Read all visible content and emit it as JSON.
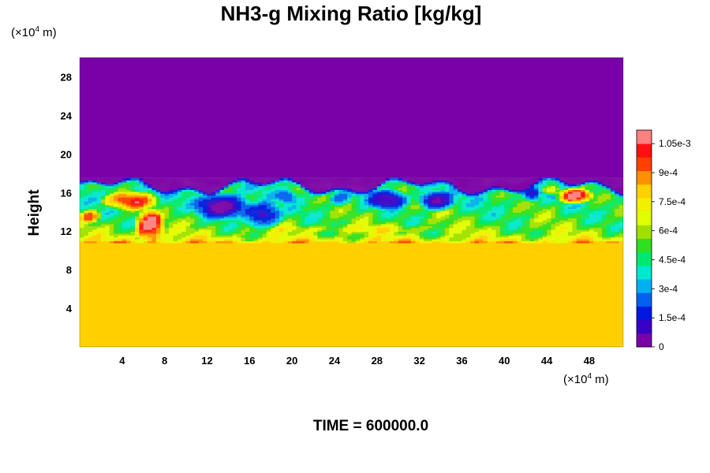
{
  "chart_data": {
    "type": "heatmap",
    "title": "NH3-g Mixing Ratio [kg/kg]",
    "ylabel": "Height",
    "xlabel": "",
    "x_unit": {
      "prefix": "(×10",
      "exp": "4",
      "suffix": " m)"
    },
    "y_unit": {
      "prefix": "(×10",
      "exp": "4",
      "suffix": " m)"
    },
    "xlim": [
      0,
      51.2
    ],
    "ylim": [
      0,
      30
    ],
    "x_ticks": [
      4,
      8,
      12,
      16,
      20,
      24,
      28,
      32,
      36,
      40,
      44,
      48
    ],
    "y_ticks": [
      4,
      8,
      12,
      16,
      20,
      24,
      28
    ],
    "colorbar": {
      "min": 0,
      "max": 0.00112,
      "tick_values": [
        0,
        0.00015,
        0.0003,
        0.00045,
        0.0006,
        0.00075,
        0.0009,
        0.00105
      ],
      "tick_labels": [
        "0",
        "1.5e-4",
        "3e-4",
        "4.5e-4",
        "6e-4",
        "7.5e-4",
        "9e-4",
        "1.05e-3"
      ],
      "colors": [
        "#7a00a8",
        "#3a00c8",
        "#0018e0",
        "#0060f0",
        "#00b0f0",
        "#00e8d0",
        "#00e870",
        "#30e020",
        "#a0e000",
        "#e0ff00",
        "#f0f000",
        "#ffd000",
        "#ff9000",
        "#ff4000",
        "#ff1010",
        "#ff8080"
      ]
    },
    "regions": {
      "lower_layer": {
        "y_range": [
          0,
          10.8
        ],
        "value": 0.00077
      },
      "upper_layer": {
        "y_range": [
          17.5,
          30
        ],
        "value": 0.0
      },
      "transition_layer": {
        "y_range": [
          10.8,
          17.5
        ],
        "value_range": [
          0.0,
          0.00112
        ]
      }
    },
    "grid": false,
    "legend": "none"
  },
  "footer": {
    "label": "TIME =",
    "value": "600000.0"
  }
}
